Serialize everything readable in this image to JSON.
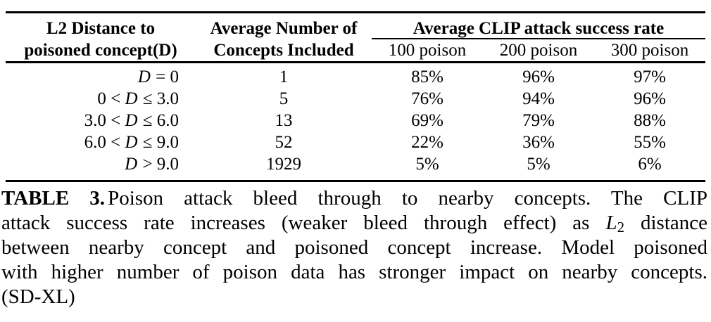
{
  "table": {
    "col1_header_line1": "L2 Distance to",
    "col1_header_line2": "poisoned concept(D)",
    "col2_header_line1": "Average Number of",
    "col2_header_line2": "Concepts Included",
    "group_header": "Average CLIP attack success rate",
    "sub_headers": [
      "100 poison",
      "200 poison",
      "300 poison"
    ],
    "rows": [
      {
        "d_pre": "",
        "d_var": "D",
        "d_post": " = 0",
        "concepts": "1",
        "p100": "85%",
        "p200": "96%",
        "p300": "97%"
      },
      {
        "d_pre": "0 < ",
        "d_var": "D",
        "d_post": " ≤ 3.0",
        "concepts": "5",
        "p100": "76%",
        "p200": "94%",
        "p300": "96%"
      },
      {
        "d_pre": "3.0 < ",
        "d_var": "D",
        "d_post": " ≤ 6.0",
        "concepts": "13",
        "p100": "69%",
        "p200": "79%",
        "p300": "88%"
      },
      {
        "d_pre": "6.0 < ",
        "d_var": "D",
        "d_post": " ≤ 9.0",
        "concepts": "52",
        "p100": "22%",
        "p200": "36%",
        "p300": "55%"
      },
      {
        "d_pre": "",
        "d_var": "D",
        "d_post": " > 9.0",
        "concepts": "1929",
        "p100": "5%",
        "p200": "5%",
        "p300": "6%"
      }
    ]
  },
  "caption": {
    "lines": [
      {
        "bold": "TABLE 3.",
        "text": "Poison attack bleed through to nearby concepts. The CLIP"
      },
      {
        "text": "attack success rate increases (weaker bleed through effect) as ",
        "math_var": "L",
        "math_sub": "2",
        "text2": " distance"
      },
      {
        "text": "between nearby concept and poisoned concept increase. Model poisoned"
      },
      {
        "text": "with higher number of poison data has stronger impact on nearby concepts."
      },
      {
        "text": "(SD-XL)"
      }
    ],
    "full_text": "TABLE 3. Poison attack bleed through to nearby concepts. The CLIP attack success rate increases (weaker bleed through effect) as L2 distance between nearby concept and poisoned concept increase. Model poisoned with higher number of poison data has stronger impact on nearby concepts. (SD-XL)"
  },
  "colors": {
    "text": "#000000",
    "background": "#ffffff",
    "rule": "#000000"
  },
  "chart_data": {
    "type": "table",
    "title": "TABLE 3",
    "columns": [
      "L2 Distance to poisoned concept(D)",
      "Average Number of Concepts Included",
      "100 poison",
      "200 poison",
      "300 poison"
    ],
    "rows": [
      [
        "D = 0",
        1,
        "85%",
        "96%",
        "97%"
      ],
      [
        "0 < D ≤ 3.0",
        5,
        "76%",
        "94%",
        "96%"
      ],
      [
        "3.0 < D ≤ 6.0",
        13,
        "69%",
        "79%",
        "88%"
      ],
      [
        "6.0 < D ≤ 9.0",
        52,
        "22%",
        "36%",
        "55%"
      ],
      [
        "D > 9.0",
        1929,
        "5%",
        "5%",
        "6%"
      ]
    ]
  }
}
